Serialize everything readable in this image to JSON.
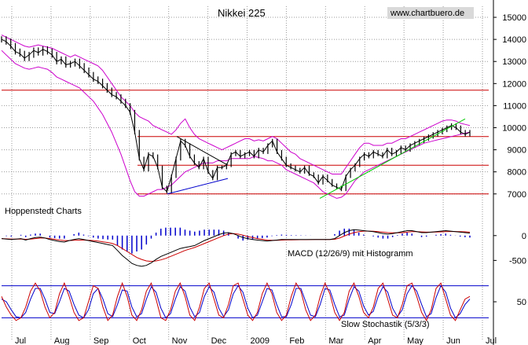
{
  "chart_data": [
    {
      "type": "line",
      "title": "Nikkei 225",
      "watermark": "www.chartbuero.de",
      "source_label": "Hoppenstedt Charts",
      "ylim": [
        6600,
        15500
      ],
      "y_ticks": [
        7000,
        8000,
        9000,
        10000,
        11000,
        12000,
        13000,
        14000,
        15000
      ],
      "x_ticks": [
        "Jul",
        "Aug",
        "Sep",
        "Oct",
        "Nov",
        "Dec",
        "2009",
        "Feb",
        "Mar",
        "Apr",
        "May",
        "Jun",
        "Jul"
      ],
      "grid": true,
      "colors": {
        "price": "#000000",
        "bollinger": "#cc00cc",
        "horizontal_lines": "#cc0000",
        "uptrend": "#00cc00",
        "downtrend": "#0000cc"
      },
      "horizontal_lines": [
        11700,
        9600,
        8300,
        7000
      ],
      "price_close": [
        14000,
        13900,
        13700,
        13450,
        13350,
        13150,
        13300,
        13500,
        13400,
        13550,
        13450,
        13300,
        13000,
        13100,
        12850,
        12900,
        13000,
        12800,
        12600,
        12400,
        12200,
        12100,
        11900,
        11700,
        11500,
        11400,
        11200,
        11000,
        10700,
        9800,
        8600,
        8100,
        8800,
        8700,
        8200,
        7300,
        7100,
        7800,
        8600,
        9400,
        9200,
        8700,
        8400,
        8200,
        8600,
        8000,
        7700,
        8200,
        8200,
        8300,
        8800,
        8900,
        8700,
        8800,
        8900,
        8700,
        9000,
        8900,
        9200,
        9400,
        8900,
        8600,
        8300,
        8200,
        8100,
        8000,
        8200,
        7900,
        7800,
        7500,
        7800,
        7600,
        7400,
        7300,
        7200,
        7800,
        8100,
        8300,
        8600,
        8800,
        8700,
        8900,
        8800,
        8700,
        9000,
        8800,
        8900,
        9100,
        9000,
        9200,
        9300,
        9400,
        9500,
        9600,
        9700,
        9800,
        9900,
        10000,
        10100,
        10000,
        9800,
        9700,
        9800
      ],
      "bollinger_upper": [
        14200,
        14100,
        14000,
        13900,
        13800,
        13700,
        13650,
        13700,
        13750,
        13700,
        13650,
        13600,
        13500,
        13400,
        13300,
        13200,
        13300,
        13200,
        13100,
        13000,
        12900,
        12800,
        12600,
        12300,
        12000,
        11700,
        11400,
        11200,
        11000,
        10700,
        10500,
        10400,
        10300,
        10100,
        10000,
        9900,
        9800,
        9700,
        9900,
        10200,
        10400,
        10000,
        9700,
        9500,
        9400,
        9300,
        9200,
        9100,
        9000,
        9100,
        9200,
        9300,
        9400,
        9500,
        9500,
        9400,
        9450,
        9400,
        9500,
        9600,
        9500,
        9300,
        9100,
        8900,
        8800,
        8600,
        8500,
        8400,
        8300,
        8200,
        8100,
        8000,
        7900,
        7900,
        7900,
        8200,
        8500,
        8800,
        9100,
        9300,
        9300,
        9200,
        9200,
        9200,
        9300,
        9300,
        9400,
        9500,
        9500,
        9600,
        9700,
        9800,
        9900,
        10000,
        10100,
        10200,
        10300,
        10350,
        10350,
        10300,
        10200,
        10150,
        10100
      ],
      "bollinger_lower": [
        13500,
        13300,
        13100,
        12900,
        12800,
        12700,
        12650,
        12700,
        12750,
        12700,
        12650,
        12500,
        12300,
        12200,
        12100,
        12000,
        11900,
        11800,
        11600,
        11400,
        11200,
        10900,
        10600,
        10200,
        9800,
        9300,
        8800,
        8200,
        7600,
        7100,
        6900,
        6900,
        7000,
        7100,
        7200,
        7200,
        7300,
        7400,
        7600,
        7800,
        8000,
        8100,
        8200,
        8300,
        8400,
        8400,
        8400,
        8500,
        8500,
        8500,
        8600,
        8600,
        8600,
        8600,
        8600,
        8700,
        8650,
        8600,
        8500,
        8500,
        8400,
        8300,
        8100,
        8000,
        7900,
        7800,
        7700,
        7600,
        7500,
        7300,
        7100,
        7000,
        6900,
        6800,
        6850,
        7000,
        7300,
        7600,
        7800,
        8000,
        8100,
        8200,
        8300,
        8400,
        8500,
        8600,
        8700,
        8800,
        8900,
        9000,
        9100,
        9200,
        9300,
        9350,
        9400,
        9450,
        9500,
        9550,
        9600,
        9650,
        9700,
        9750,
        9800
      ]
    },
    {
      "type": "line",
      "title": "MACD (12/26/9) mit Histogramm",
      "ylim": [
        -700,
        250
      ],
      "y_ticks": [
        0,
        -500
      ],
      "colors": {
        "macd": "#000000",
        "signal": "#cc0000",
        "histogram": "#0000cc"
      },
      "macd": [
        -60,
        -70,
        -80,
        -70,
        -60,
        -90,
        -60,
        -40,
        -30,
        -50,
        -80,
        -100,
        -120,
        -130,
        -100,
        -80,
        -60,
        -80,
        -100,
        -120,
        -140,
        -160,
        -180,
        -200,
        -300,
        -400,
        -480,
        -560,
        -600,
        -620,
        -600,
        -550,
        -480,
        -420,
        -380,
        -340,
        -300,
        -260,
        -240,
        -220,
        -200,
        -150,
        -100,
        -60,
        -20,
        20,
        50,
        60,
        40,
        0,
        -40,
        -60,
        -80,
        -90,
        -100,
        -110,
        -100,
        -90,
        -80,
        -80,
        -80,
        -80,
        -80,
        -80,
        -80,
        -80,
        -80,
        -80,
        -80,
        -60,
        0,
        60,
        100,
        120,
        110,
        100,
        90,
        80,
        60,
        40,
        30,
        40,
        60,
        80,
        100,
        100,
        80,
        60,
        60,
        70,
        80,
        90,
        100,
        90,
        80,
        70,
        60,
        50
      ],
      "signal": [
        -60,
        -65,
        -70,
        -70,
        -68,
        -75,
        -70,
        -60,
        -50,
        -50,
        -60,
        -75,
        -90,
        -100,
        -100,
        -95,
        -90,
        -90,
        -95,
        -100,
        -110,
        -125,
        -140,
        -160,
        -200,
        -260,
        -320,
        -380,
        -440,
        -480,
        -510,
        -520,
        -510,
        -490,
        -460,
        -420,
        -380,
        -340,
        -300,
        -270,
        -240,
        -200,
        -160,
        -120,
        -80,
        -40,
        0,
        30,
        40,
        30,
        10,
        -20,
        -40,
        -60,
        -75,
        -90,
        -95,
        -95,
        -90,
        -88,
        -85,
        -84,
        -83,
        -82,
        -81,
        -80,
        -80,
        -80,
        -80,
        -75,
        -50,
        -10,
        30,
        60,
        80,
        90,
        90,
        88,
        80,
        70,
        60,
        55,
        55,
        60,
        70,
        80,
        80,
        75,
        70,
        70,
        72,
        76,
        80,
        82,
        82,
        80,
        76,
        70
      ]
    },
    {
      "type": "line",
      "title": "Slow Stochastik (5/3/3)",
      "ylim": [
        0,
        100
      ],
      "y_ticks": [
        50
      ],
      "reference_lines": [
        80,
        20
      ],
      "colors": {
        "k": "#cc0000",
        "d": "#0000cc",
        "reference": "#0000cc"
      },
      "k": [
        60,
        40,
        25,
        15,
        20,
        40,
        70,
        85,
        70,
        40,
        20,
        30,
        65,
        85,
        60,
        30,
        15,
        20,
        50,
        80,
        75,
        40,
        15,
        25,
        60,
        85,
        60,
        25,
        15,
        35,
        70,
        85,
        55,
        20,
        15,
        35,
        70,
        85,
        60,
        25,
        15,
        40,
        75,
        85,
        55,
        25,
        20,
        45,
        80,
        85,
        55,
        25,
        15,
        30,
        65,
        85,
        65,
        30,
        15,
        25,
        60,
        85,
        70,
        35,
        15,
        25,
        60,
        85,
        65,
        30,
        15,
        30,
        70,
        85,
        60,
        30,
        20,
        40,
        75,
        85,
        55,
        25,
        20,
        45,
        80,
        85,
        60,
        30,
        15,
        35,
        75,
        85,
        55,
        25,
        15,
        35,
        55,
        60
      ],
      "d": [
        55,
        50,
        35,
        22,
        20,
        30,
        55,
        75,
        75,
        55,
        30,
        28,
        50,
        75,
        70,
        45,
        25,
        20,
        35,
        65,
        75,
        55,
        28,
        22,
        45,
        72,
        70,
        40,
        22,
        28,
        55,
        78,
        68,
        38,
        20,
        28,
        55,
        78,
        70,
        40,
        22,
        30,
        60,
        78,
        68,
        38,
        22,
        35,
        65,
        80,
        68,
        38,
        20,
        25,
        50,
        75,
        72,
        45,
        22,
        22,
        45,
        75,
        75,
        50,
        25,
        22,
        45,
        75,
        72,
        45,
        22,
        25,
        55,
        78,
        70,
        42,
        25,
        32,
        60,
        78,
        68,
        38,
        22,
        35,
        65,
        80,
        70,
        45,
        22,
        28,
        58,
        80,
        68,
        38,
        20,
        28,
        45,
        55
      ]
    }
  ]
}
